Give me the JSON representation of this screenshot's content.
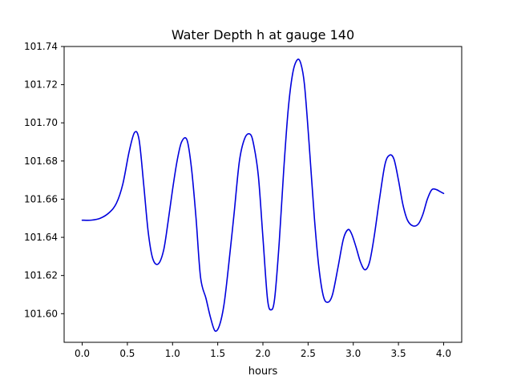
{
  "chart_data": {
    "type": "line",
    "title": "Water Depth h at gauge 140",
    "xlabel": "hours",
    "ylabel": "",
    "xlim": [
      -0.2,
      4.2
    ],
    "ylim": [
      101.585,
      101.74
    ],
    "xticks": [
      0.0,
      0.5,
      1.0,
      1.5,
      2.0,
      2.5,
      3.0,
      3.5,
      4.0
    ],
    "xtick_labels": [
      "0.0",
      "0.5",
      "1.0",
      "1.5",
      "2.0",
      "2.5",
      "3.0",
      "3.5",
      "4.0"
    ],
    "yticks": [
      101.6,
      101.62,
      101.64,
      101.66,
      101.68,
      101.7,
      101.72,
      101.74
    ],
    "ytick_labels": [
      "101.60",
      "101.62",
      "101.64",
      "101.66",
      "101.68",
      "101.70",
      "101.72",
      "101.74"
    ],
    "grid": false,
    "legend": "none",
    "series": [
      {
        "color": "#0000dd",
        "x": [
          0.0,
          0.1,
          0.2,
          0.3,
          0.38,
          0.45,
          0.52,
          0.58,
          0.63,
          0.68,
          0.73,
          0.78,
          0.84,
          0.9,
          0.95,
          1.0,
          1.05,
          1.1,
          1.16,
          1.21,
          1.26,
          1.31,
          1.37,
          1.42,
          1.47,
          1.52,
          1.57,
          1.62,
          1.68,
          1.74,
          1.8,
          1.86,
          1.9,
          1.95,
          2.0,
          2.05,
          2.09,
          2.13,
          2.18,
          2.23,
          2.28,
          2.33,
          2.38,
          2.42,
          2.46,
          2.51,
          2.57,
          2.62,
          2.67,
          2.72,
          2.77,
          2.83,
          2.89,
          2.94,
          2.98,
          3.03,
          3.08,
          3.13,
          3.18,
          3.23,
          3.29,
          3.35,
          3.4,
          3.45,
          3.5,
          3.55,
          3.6,
          3.66,
          3.72,
          3.77,
          3.82,
          3.87,
          3.92,
          3.96,
          4.0
        ],
        "y": [
          101.649,
          101.649,
          101.65,
          101.653,
          101.658,
          101.668,
          101.685,
          101.695,
          101.691,
          101.668,
          101.643,
          101.629,
          101.626,
          101.633,
          101.648,
          101.665,
          101.68,
          101.69,
          101.691,
          101.676,
          101.65,
          101.619,
          101.608,
          101.598,
          101.591,
          101.594,
          101.605,
          101.625,
          101.652,
          101.68,
          101.692,
          101.694,
          101.688,
          101.672,
          101.64,
          101.608,
          101.602,
          101.608,
          101.637,
          101.675,
          101.707,
          101.726,
          101.733,
          101.731,
          101.72,
          101.69,
          101.65,
          101.624,
          101.609,
          101.606,
          101.61,
          101.624,
          101.639,
          101.644,
          101.642,
          101.635,
          101.627,
          101.623,
          101.627,
          101.64,
          101.66,
          101.678,
          101.683,
          101.681,
          101.67,
          101.657,
          101.649,
          101.646,
          101.647,
          101.652,
          101.66,
          101.665,
          101.665,
          101.664,
          101.663
        ]
      }
    ]
  }
}
